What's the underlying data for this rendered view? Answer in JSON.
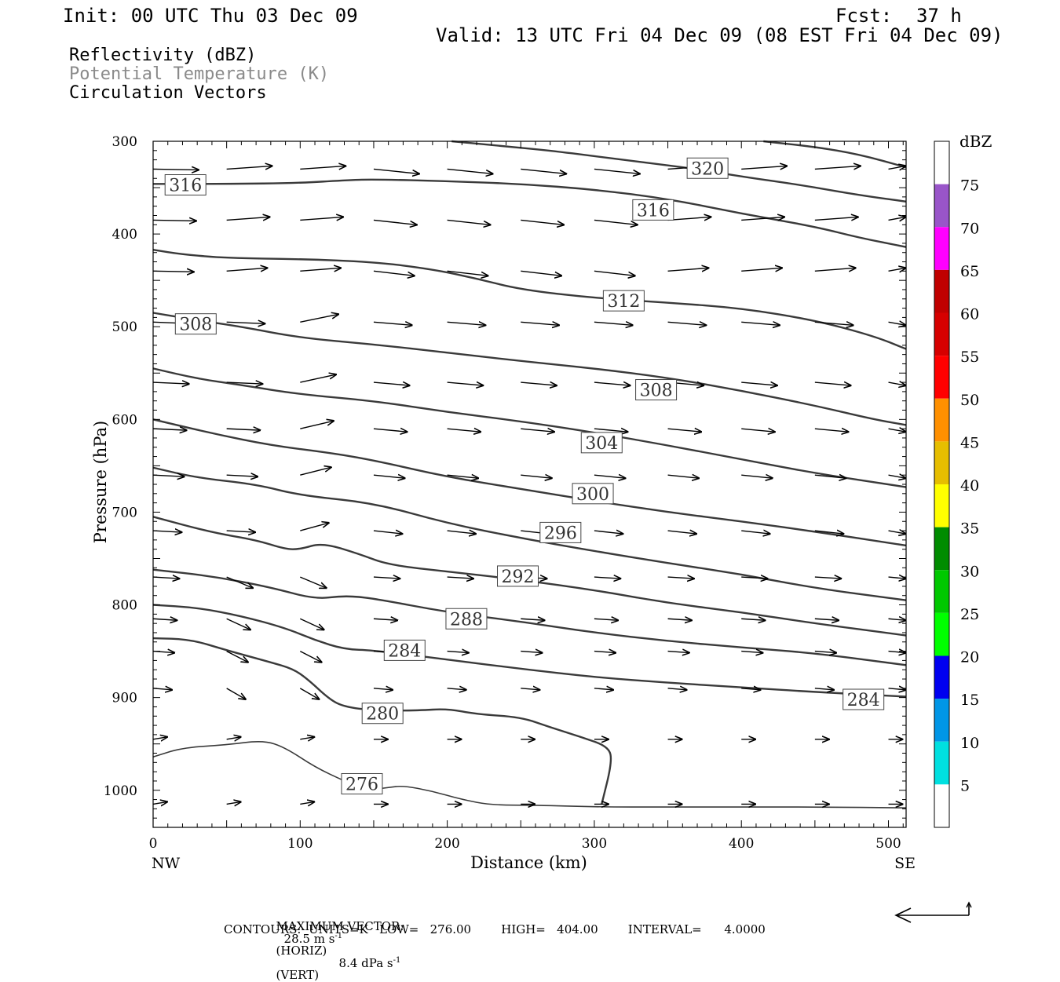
{
  "header": {
    "init": "Init: 00 UTC Thu 03 Dec 09",
    "fcst_label": "Fcst:",
    "fcst_value": "37 h",
    "valid": "Valid: 13 UTC Fri 04 Dec 09 (08 EST Fri 04 Dec 09)",
    "field1": "Reflectivity (dBZ)",
    "field2": "Potential Temperature (K)",
    "field3": "Circulation Vectors"
  },
  "footer": {
    "max_vector_label": "MAXIMUM VECTOR:",
    "horiz_value": "28.5 m s",
    "horiz_unit": "(HORIZ)",
    "vert_value": "8.4 dPa s",
    "vert_unit": "(VERT)",
    "exponent": "-1",
    "contours_line": "CONTOURS:  UNITS=K   LOW=   276.00        HIGH=   404.00        INTERVAL=      4.0000"
  },
  "chart_data": {
    "type": "cross-section",
    "xlabel": "Distance (km)",
    "ylabel": "Pressure (hPa)",
    "xlim": [
      0,
      512
    ],
    "ylim": [
      1040,
      300
    ],
    "x_ticks": [
      0,
      100,
      200,
      300,
      400,
      500
    ],
    "y_ticks": [
      300,
      400,
      500,
      600,
      700,
      800,
      900,
      1000
    ],
    "x_left_label": "NW",
    "x_right_label": "SE",
    "colorbar": {
      "title": "dBZ",
      "levels": [
        5,
        10,
        15,
        20,
        25,
        30,
        35,
        40,
        45,
        50,
        55,
        60,
        65,
        70,
        75
      ],
      "colors": [
        "#ffffff",
        "#00e0e0",
        "#0096e6",
        "#0000f0",
        "#00ff00",
        "#00c800",
        "#008c00",
        "#ffff00",
        "#e6be00",
        "#ff9000",
        "#ff0000",
        "#d60000",
        "#c00000",
        "#ff00ff",
        "#9955c9",
        "#ffffff"
      ]
    },
    "theta_contours": [
      {
        "value": 320,
        "points": [
          [
            203,
            300
          ],
          [
            230,
            304
          ],
          [
            270,
            310
          ],
          [
            300,
            316
          ],
          [
            330,
            322
          ],
          [
            370,
            330
          ],
          [
            400,
            338
          ],
          [
            440,
            347
          ],
          [
            480,
            358
          ],
          [
            512,
            365
          ]
        ],
        "labels": [
          [
            377,
            329
          ]
        ]
      },
      {
        "value": 320,
        "points": [
          [
            415,
            300
          ],
          [
            450,
            306
          ],
          [
            480,
            314
          ],
          [
            512,
            328
          ]
        ],
        "labels": []
      },
      {
        "value": 316,
        "points": [
          [
            0,
            346
          ],
          [
            50,
            346
          ],
          [
            100,
            345
          ],
          [
            130,
            342
          ],
          [
            150,
            341
          ],
          [
            200,
            343
          ],
          [
            250,
            346
          ],
          [
            300,
            352
          ],
          [
            350,
            362
          ],
          [
            400,
            378
          ],
          [
            450,
            392
          ],
          [
            480,
            404
          ],
          [
            512,
            414
          ]
        ],
        "labels": [
          [
            22,
            347
          ],
          [
            340,
            374
          ]
        ]
      },
      {
        "value": 312,
        "points": [
          [
            0,
            417
          ],
          [
            20,
            422
          ],
          [
            50,
            426
          ],
          [
            100,
            427
          ],
          [
            150,
            430
          ],
          [
            190,
            438
          ],
          [
            220,
            448
          ],
          [
            250,
            460
          ],
          [
            300,
            469
          ],
          [
            350,
            474
          ],
          [
            400,
            480
          ],
          [
            450,
            493
          ],
          [
            490,
            510
          ],
          [
            512,
            524
          ]
        ],
        "labels": [
          [
            320,
            472
          ]
        ]
      },
      {
        "value": 308,
        "points": [
          [
            0,
            485
          ],
          [
            30,
            493
          ],
          [
            60,
            500
          ],
          [
            100,
            512
          ],
          [
            150,
            519
          ],
          [
            200,
            528
          ],
          [
            250,
            537
          ],
          [
            300,
            545
          ],
          [
            350,
            555
          ],
          [
            400,
            569
          ],
          [
            450,
            585
          ],
          [
            490,
            600
          ],
          [
            512,
            606
          ]
        ],
        "labels": [
          [
            29,
            497
          ],
          [
            342,
            568
          ]
        ]
      },
      {
        "value": 304,
        "points": [
          [
            0,
            545
          ],
          [
            30,
            556
          ],
          [
            60,
            563
          ],
          [
            100,
            573
          ],
          [
            150,
            580
          ],
          [
            200,
            592
          ],
          [
            250,
            602
          ],
          [
            300,
            614
          ],
          [
            350,
            628
          ],
          [
            400,
            643
          ],
          [
            450,
            658
          ],
          [
            512,
            673
          ]
        ],
        "labels": [
          [
            305,
            625
          ]
        ]
      },
      {
        "value": 300,
        "points": [
          [
            0,
            600
          ],
          [
            40,
            615
          ],
          [
            80,
            628
          ],
          [
            120,
            636
          ],
          [
            150,
            644
          ],
          [
            200,
            662
          ],
          [
            250,
            675
          ],
          [
            300,
            688
          ],
          [
            350,
            700
          ],
          [
            400,
            710
          ],
          [
            450,
            721
          ],
          [
            512,
            736
          ]
        ],
        "labels": [
          [
            299,
            680
          ]
        ]
      },
      {
        "value": 296,
        "points": [
          [
            0,
            652
          ],
          [
            30,
            663
          ],
          [
            70,
            670
          ],
          [
            100,
            682
          ],
          [
            150,
            690
          ],
          [
            200,
            712
          ],
          [
            250,
            728
          ],
          [
            300,
            742
          ],
          [
            350,
            755
          ],
          [
            400,
            767
          ],
          [
            450,
            782
          ],
          [
            512,
            795
          ]
        ],
        "labels": [
          [
            277,
            722
          ]
        ]
      },
      {
        "value": 292,
        "points": [
          [
            0,
            705
          ],
          [
            40,
            722
          ],
          [
            70,
            730
          ],
          [
            90,
            740
          ],
          [
            100,
            740
          ],
          [
            115,
            733
          ],
          [
            140,
            745
          ],
          [
            160,
            757
          ],
          [
            200,
            764
          ],
          [
            250,
            773
          ],
          [
            300,
            784
          ],
          [
            350,
            798
          ],
          [
            400,
            808
          ],
          [
            450,
            820
          ],
          [
            512,
            833
          ]
        ],
        "labels": [
          [
            248,
            769
          ]
        ]
      },
      {
        "value": 288,
        "points": [
          [
            0,
            762
          ],
          [
            40,
            769
          ],
          [
            80,
            781
          ],
          [
            110,
            794
          ],
          [
            130,
            790
          ],
          [
            150,
            793
          ],
          [
            200,
            808
          ],
          [
            250,
            818
          ],
          [
            300,
            830
          ],
          [
            350,
            839
          ],
          [
            400,
            846
          ],
          [
            450,
            852
          ],
          [
            512,
            865
          ]
        ],
        "labels": [
          [
            213,
            815
          ]
        ]
      },
      {
        "value": 284,
        "points": [
          [
            0,
            800
          ],
          [
            30,
            803
          ],
          [
            60,
            812
          ],
          [
            90,
            825
          ],
          [
            110,
            838
          ],
          [
            130,
            848
          ],
          [
            150,
            849
          ],
          [
            200,
            859
          ],
          [
            250,
            869
          ],
          [
            300,
            878
          ],
          [
            350,
            884
          ],
          [
            400,
            889
          ],
          [
            450,
            894
          ],
          [
            512,
            899
          ]
        ],
        "labels": [
          [
            171,
            849
          ],
          [
            483,
            902
          ]
        ]
      },
      {
        "value": 280,
        "points": [
          [
            0,
            836
          ],
          [
            25,
            837
          ],
          [
            50,
            849
          ],
          [
            80,
            862
          ],
          [
            95,
            869
          ],
          [
            105,
            880
          ],
          [
            120,
            902
          ],
          [
            130,
            910
          ],
          [
            150,
            914
          ],
          [
            180,
            914
          ],
          [
            200,
            912
          ],
          [
            220,
            918
          ],
          [
            250,
            921
          ],
          [
            270,
            932
          ],
          [
            290,
            942
          ],
          [
            310,
            953
          ],
          [
            312,
            970
          ],
          [
            305,
            1015
          ]
        ],
        "labels": [
          [
            156,
            917
          ]
        ]
      },
      {
        "value": 276,
        "points": [
          [
            0,
            964
          ],
          [
            20,
            954
          ],
          [
            50,
            951
          ],
          [
            75,
            946
          ],
          [
            90,
            954
          ],
          [
            110,
            975
          ],
          [
            130,
            990
          ],
          [
            145,
            1000
          ],
          [
            160,
            997
          ],
          [
            170,
            995
          ],
          [
            190,
            1001
          ],
          [
            210,
            1010
          ],
          [
            230,
            1016
          ],
          [
            260,
            1016
          ],
          [
            300,
            1018
          ],
          [
            350,
            1018
          ],
          [
            400,
            1018
          ],
          [
            450,
            1018
          ],
          [
            512,
            1019
          ]
        ],
        "labels": [
          [
            142,
            993
          ]
        ]
      }
    ],
    "vectors_grid": {
      "x_step": 50,
      "x_start": 0,
      "rows_hpa": [
        330,
        385,
        440,
        495,
        560,
        610,
        660,
        720,
        770,
        815,
        850,
        890,
        945,
        1015
      ]
    }
  }
}
